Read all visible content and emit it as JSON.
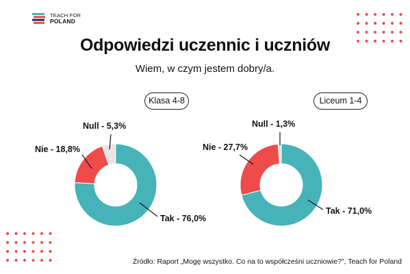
{
  "logo": {
    "line1": "TEACH FOR",
    "line2": "POLAND"
  },
  "title": "Odpowiedzi uczennic i uczniów",
  "subtitle": "Wiem, w czym jestem dobry/a.",
  "source": "Źródło: Raport „Mogę wszystko. Co na to współcześni uczniowie?”, Teach for Poland",
  "colors": {
    "tak": "#45b3b8",
    "nie": "#ef4b4b",
    "null": "#e8e6e3",
    "dots": "#ef4b4b"
  },
  "chart_data": [
    {
      "type": "pie",
      "title": "Klasa 4-8",
      "slices": [
        {
          "name": "Tak",
          "value": 76.0,
          "label": "Tak - 76,0%",
          "color": "#45b3b8"
        },
        {
          "name": "Nie",
          "value": 18.8,
          "label": "Nie - 18,8%",
          "color": "#ef4b4b"
        },
        {
          "name": "Null",
          "value": 5.3,
          "label": "Null - 5,3%",
          "color": "#e8e6e3"
        }
      ]
    },
    {
      "type": "pie",
      "title": "Liceum 1-4",
      "slices": [
        {
          "name": "Tak",
          "value": 71.0,
          "label": "Tak - 71,0%",
          "color": "#45b3b8"
        },
        {
          "name": "Nie",
          "value": 27.7,
          "label": "Nie - 27,7%",
          "color": "#ef4b4b"
        },
        {
          "name": "Null",
          "value": 1.3,
          "label": "Null - 1,3%",
          "color": "#e8e6e3"
        }
      ]
    }
  ]
}
